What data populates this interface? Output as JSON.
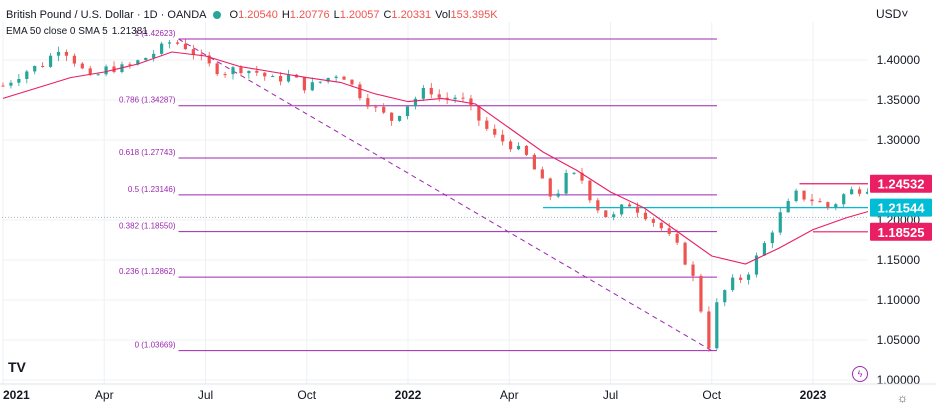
{
  "chart_data": {
    "type": "candlestick",
    "title": "British Pound / U.S. Dollar · 1D · OANDA",
    "header": {
      "symbol": "British Pound / U.S. Dollar · 1D · OANDA",
      "ohlc": [
        {
          "label": "O",
          "value": "1.20540"
        },
        {
          "label": "H",
          "value": "1.20776"
        },
        {
          "label": "L",
          "value": "1.20057"
        },
        {
          "label": "C",
          "value": "1.20331"
        },
        {
          "label": "Vol",
          "value": "153.395K"
        }
      ],
      "indicator": {
        "label": "EMA 50 close 0 SMA 5",
        "value": "1.21381"
      },
      "currency": "USD"
    },
    "ylim": [
      1.0,
      1.46
    ],
    "y_ticks": [
      "1.40000",
      "1.35000",
      "1.30000",
      "1.20000",
      "1.15000",
      "1.10000",
      "1.05000",
      "1.00000"
    ],
    "x_ticks": [
      {
        "label": "2021",
        "t": 0,
        "bold": true
      },
      {
        "label": "Apr",
        "t": 3
      },
      {
        "label": "Jul",
        "t": 6
      },
      {
        "label": "Oct",
        "t": 9
      },
      {
        "label": "2022",
        "t": 12,
        "bold": true
      },
      {
        "label": "Apr",
        "t": 15
      },
      {
        "label": "Jul",
        "t": 18
      },
      {
        "label": "Oct",
        "t": 21
      },
      {
        "label": "2023",
        "t": 24,
        "bold": true
      }
    ],
    "xlim_months": [
      0,
      27.7
    ],
    "price_path": [
      [
        0,
        1.368
      ],
      [
        0.6,
        1.385
      ],
      [
        1.2,
        1.395
      ],
      [
        1.7,
        1.418
      ],
      [
        2.1,
        1.4
      ],
      [
        2.6,
        1.375
      ],
      [
        3.1,
        1.39
      ],
      [
        3.6,
        1.39
      ],
      [
        4.1,
        1.4
      ],
      [
        4.6,
        1.412
      ],
      [
        5.0,
        1.424
      ],
      [
        5.5,
        1.415
      ],
      [
        6.0,
        1.395
      ],
      [
        6.5,
        1.385
      ],
      [
        7.0,
        1.39
      ],
      [
        7.5,
        1.385
      ],
      [
        8.0,
        1.375
      ],
      [
        8.5,
        1.38
      ],
      [
        9.0,
        1.365
      ],
      [
        9.5,
        1.375
      ],
      [
        10.0,
        1.385
      ],
      [
        10.5,
        1.36
      ],
      [
        11.0,
        1.34
      ],
      [
        11.5,
        1.325
      ],
      [
        12.0,
        1.345
      ],
      [
        12.6,
        1.365
      ],
      [
        13.0,
        1.35
      ],
      [
        13.5,
        1.355
      ],
      [
        14.0,
        1.33
      ],
      [
        14.5,
        1.305
      ],
      [
        15.0,
        1.295
      ],
      [
        15.5,
        1.28
      ],
      [
        16.0,
        1.245
      ],
      [
        16.3,
        1.225
      ],
      [
        16.7,
        1.255
      ],
      [
        17.1,
        1.255
      ],
      [
        17.5,
        1.22
      ],
      [
        18.0,
        1.2
      ],
      [
        18.5,
        1.222
      ],
      [
        19.0,
        1.208
      ],
      [
        19.5,
        1.19
      ],
      [
        20.0,
        1.165
      ],
      [
        20.4,
        1.135
      ],
      [
        20.7,
        1.085
      ],
      [
        20.95,
        1.037
      ],
      [
        21.1,
        1.09
      ],
      [
        21.5,
        1.12
      ],
      [
        22.0,
        1.13
      ],
      [
        22.5,
        1.165
      ],
      [
        23.0,
        1.205
      ],
      [
        23.5,
        1.232
      ],
      [
        24.0,
        1.225
      ],
      [
        24.5,
        1.215
      ],
      [
        25.0,
        1.235
      ],
      [
        25.5,
        1.24
      ],
      [
        26.0,
        1.245
      ],
      [
        26.3,
        1.22
      ],
      [
        26.5,
        1.203
      ]
    ],
    "ema_path": [
      [
        0,
        1.352
      ],
      [
        1,
        1.365
      ],
      [
        2,
        1.378
      ],
      [
        3,
        1.385
      ],
      [
        4,
        1.395
      ],
      [
        5,
        1.41
      ],
      [
        6,
        1.405
      ],
      [
        7,
        1.392
      ],
      [
        8,
        1.385
      ],
      [
        9,
        1.378
      ],
      [
        10,
        1.372
      ],
      [
        11,
        1.358
      ],
      [
        12,
        1.348
      ],
      [
        13,
        1.352
      ],
      [
        14,
        1.345
      ],
      [
        15,
        1.315
      ],
      [
        16,
        1.285
      ],
      [
        17,
        1.262
      ],
      [
        18,
        1.235
      ],
      [
        19,
        1.215
      ],
      [
        20,
        1.185
      ],
      [
        21,
        1.155
      ],
      [
        22,
        1.145
      ],
      [
        23,
        1.165
      ],
      [
        24,
        1.188
      ],
      [
        25,
        1.203
      ],
      [
        26,
        1.215
      ],
      [
        26.5,
        1.214
      ]
    ],
    "fib_levels": [
      {
        "label": "1 (1.42623)",
        "value": 1.42623
      },
      {
        "label": "0.786 (1.34287)",
        "value": 1.34287
      },
      {
        "label": "0.618 (1.27743)",
        "value": 1.27743
      },
      {
        "label": "0.5 (1.23146)",
        "value": 1.23146
      },
      {
        "label": "0.382 (1.18550)",
        "value": 1.1855
      },
      {
        "label": "0.236 (1.12862)",
        "value": 1.12862
      },
      {
        "label": "0 (1.03669)",
        "value": 1.03669
      }
    ],
    "fib_range_months": [
      5.2,
      21.0
    ],
    "trend_line": {
      "from": [
        5.2,
        1.42623
      ],
      "to": [
        21.0,
        1.03669
      ]
    },
    "horizontal_lines": [
      {
        "value": 1.24532,
        "from_month": 23.6,
        "color": "#e91e63"
      },
      {
        "value": 1.21544,
        "from_month": 16.0,
        "color": "#00bcd4"
      },
      {
        "value": 1.18525,
        "from_month": 24.0,
        "color": "#e91e63"
      }
    ],
    "price_labels": [
      {
        "text": "1.24532",
        "value": 1.24532,
        "color": "#e91e63"
      },
      {
        "text": "1.21544",
        "value": 1.21544,
        "color": "#00bcd4"
      },
      {
        "text": "1.18525",
        "value": 1.18525,
        "color": "#e91e63"
      }
    ],
    "last_price": 1.2033,
    "colors": {
      "up": "#26a69a",
      "down": "#ef5350",
      "ema": "#e91e63",
      "fib": "#9c27b0",
      "grid": "#eef0f3"
    }
  }
}
